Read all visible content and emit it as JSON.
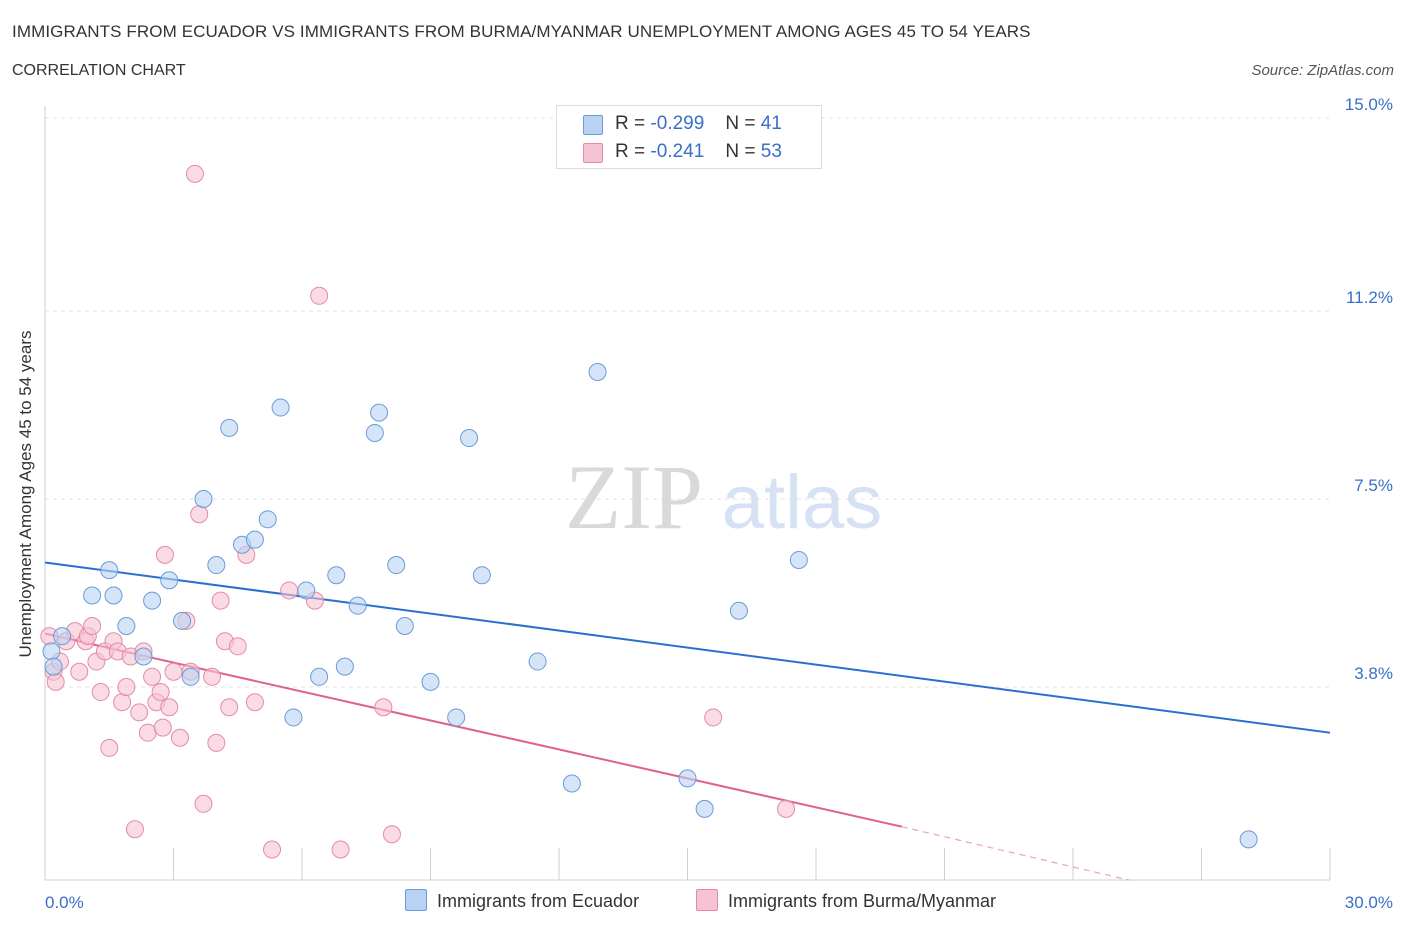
{
  "header": {
    "title": "IMMIGRANTS FROM ECUADOR VS IMMIGRANTS FROM BURMA/MYANMAR UNEMPLOYMENT AMONG AGES 45 TO 54 YEARS",
    "subtitle": "CORRELATION CHART",
    "source": "Source: ZipAtlas.com"
  },
  "legend": {
    "r_label": "R =",
    "n_label": "N =",
    "series": [
      {
        "name": "Immigrants from Ecuador",
        "r": "-0.299",
        "n": "41"
      },
      {
        "name": "Immigrants from Burma/Myanmar",
        "r": "-0.241",
        "n": "53"
      }
    ]
  },
  "watermark": {
    "zip": "ZIP",
    "atlas": "atlas"
  },
  "colors": {
    "blue_fill": "#b9d3f2",
    "blue_stroke": "#6a9bd8",
    "blue_line": "#2a6fd0",
    "pink_fill": "#f6c3d2",
    "pink_stroke": "#e48aa8",
    "pink_line": "#e0628f",
    "tick_text": "#3a6fc7",
    "grid": "#e2e2e2"
  },
  "chart_data": {
    "type": "scatter",
    "title": "IMMIGRANTS FROM ECUADOR VS IMMIGRANTS FROM BURMA/MYANMAR UNEMPLOYMENT AMONG AGES 45 TO 54 YEARS",
    "xlabel": "",
    "ylabel": "Unemployment Among Ages 45 to 54 years",
    "xlim": [
      0,
      30
    ],
    "ylim": [
      0,
      15
    ],
    "x_tick_labels": [
      "0.0%",
      "30.0%"
    ],
    "y_ticks": [
      3.8,
      7.5,
      11.2,
      15.0
    ],
    "y_tick_labels": [
      "3.8%",
      "7.5%",
      "11.2%",
      "15.0%"
    ],
    "series": [
      {
        "name": "Immigrants from Ecuador",
        "color": "blue",
        "points": [
          [
            0.15,
            4.5
          ],
          [
            0.2,
            4.2
          ],
          [
            0.4,
            4.8
          ],
          [
            1.1,
            5.6
          ],
          [
            1.5,
            6.1
          ],
          [
            1.6,
            5.6
          ],
          [
            1.9,
            5.0
          ],
          [
            2.3,
            4.4
          ],
          [
            2.5,
            5.5
          ],
          [
            2.9,
            5.9
          ],
          [
            3.2,
            5.1
          ],
          [
            3.4,
            4.0
          ],
          [
            3.7,
            7.5
          ],
          [
            4.0,
            6.2
          ],
          [
            4.3,
            8.9
          ],
          [
            4.6,
            6.6
          ],
          [
            4.9,
            6.7
          ],
          [
            5.2,
            7.1
          ],
          [
            5.5,
            9.3
          ],
          [
            5.8,
            3.2
          ],
          [
            6.1,
            5.7
          ],
          [
            6.4,
            4.0
          ],
          [
            6.8,
            6.0
          ],
          [
            7.0,
            4.2
          ],
          [
            7.3,
            5.4
          ],
          [
            7.7,
            8.8
          ],
          [
            7.8,
            9.2
          ],
          [
            8.2,
            6.2
          ],
          [
            8.4,
            5.0
          ],
          [
            9.0,
            3.9
          ],
          [
            9.6,
            3.2
          ],
          [
            9.9,
            8.7
          ],
          [
            10.2,
            6.0
          ],
          [
            11.5,
            4.3
          ],
          [
            12.3,
            1.9
          ],
          [
            12.9,
            10.0
          ],
          [
            15.0,
            2.0
          ],
          [
            15.4,
            1.4
          ],
          [
            16.2,
            5.3
          ],
          [
            17.6,
            6.3
          ],
          [
            28.1,
            0.8
          ]
        ],
        "trend": {
          "x": [
            0,
            30
          ],
          "y": [
            6.25,
            2.9
          ]
        }
      },
      {
        "name": "Immigrants from Burma/Myanmar",
        "color": "pink",
        "points": [
          [
            0.1,
            4.8
          ],
          [
            0.2,
            4.1
          ],
          [
            0.25,
            3.9
          ],
          [
            0.35,
            4.3
          ],
          [
            0.5,
            4.7
          ],
          [
            0.7,
            4.9
          ],
          [
            0.8,
            4.1
          ],
          [
            0.95,
            4.7
          ],
          [
            1.0,
            4.8
          ],
          [
            1.1,
            5.0
          ],
          [
            1.2,
            4.3
          ],
          [
            1.3,
            3.7
          ],
          [
            1.4,
            4.5
          ],
          [
            1.5,
            2.6
          ],
          [
            1.6,
            4.7
          ],
          [
            1.7,
            4.5
          ],
          [
            1.8,
            3.5
          ],
          [
            1.9,
            3.8
          ],
          [
            2.0,
            4.4
          ],
          [
            2.1,
            1.0
          ],
          [
            2.2,
            3.3
          ],
          [
            2.3,
            4.5
          ],
          [
            2.4,
            2.9
          ],
          [
            2.5,
            4.0
          ],
          [
            2.6,
            3.5
          ],
          [
            2.7,
            3.7
          ],
          [
            2.75,
            3.0
          ],
          [
            2.8,
            6.4
          ],
          [
            2.9,
            3.4
          ],
          [
            3.0,
            4.1
          ],
          [
            3.15,
            2.8
          ],
          [
            3.3,
            5.1
          ],
          [
            3.4,
            4.1
          ],
          [
            3.5,
            13.9
          ],
          [
            3.6,
            7.2
          ],
          [
            3.7,
            1.5
          ],
          [
            3.9,
            4.0
          ],
          [
            4.0,
            2.7
          ],
          [
            4.1,
            5.5
          ],
          [
            4.2,
            4.7
          ],
          [
            4.3,
            3.4
          ],
          [
            4.5,
            4.6
          ],
          [
            4.7,
            6.4
          ],
          [
            4.9,
            3.5
          ],
          [
            5.3,
            0.6
          ],
          [
            5.7,
            5.7
          ],
          [
            6.3,
            5.5
          ],
          [
            6.4,
            11.5
          ],
          [
            6.9,
            0.6
          ],
          [
            7.9,
            3.4
          ],
          [
            8.1,
            0.9
          ],
          [
            15.6,
            3.2
          ],
          [
            17.3,
            1.4
          ]
        ],
        "trend": {
          "x": [
            0,
            20.0
          ],
          "y": [
            4.85,
            1.05
          ]
        },
        "trend_dashed": {
          "x": [
            20.0,
            25.3
          ],
          "y": [
            1.05,
            0.0
          ]
        }
      }
    ]
  }
}
